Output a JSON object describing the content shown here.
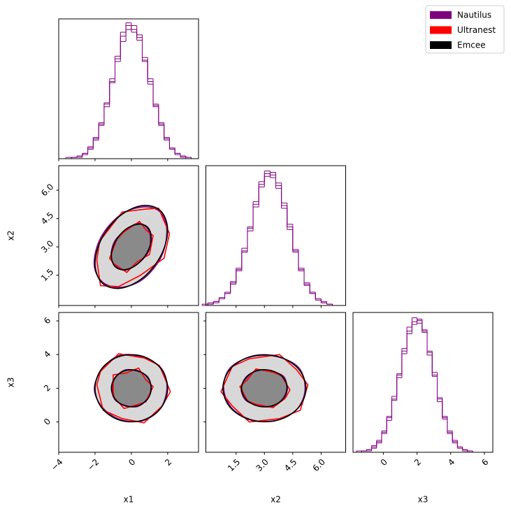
{
  "chart_data": {
    "type": "corner",
    "legend": "upper right",
    "hist_color": "purple",
    "hist_ylim": [
      0,
      105
    ],
    "variables": [
      {
        "label": "x1",
        "lim": [
          -4,
          3.7
        ],
        "ticks": [
          {
            "value": -4,
            "label": "−4"
          },
          {
            "value": -2,
            "label": "−2"
          },
          0,
          2
        ],
        "bins": [
          -3.6,
          -3.3,
          -3.0,
          -2.7,
          -2.4,
          -2.1,
          -1.8,
          -1.5,
          -1.2,
          -0.9,
          -0.6,
          -0.3,
          0,
          0.3,
          0.6,
          0.9,
          1.2,
          1.5,
          1.8,
          2.1,
          2.4,
          2.7,
          3.0,
          3.3,
          3.6
        ]
      },
      {
        "label": "x2",
        "lim": [
          -0.1,
          7.3
        ],
        "ticks": [
          1.5,
          {
            "value": 3,
            "label": "3.0"
          },
          4.5,
          {
            "value": 6,
            "label": "6.0"
          }
        ],
        "bins": [
          -0.3,
          0,
          0.3,
          0.6,
          0.9,
          1.2,
          1.5,
          1.8,
          2.1,
          2.4,
          2.7,
          3.0,
          3.3,
          3.6,
          3.9,
          4.2,
          4.5,
          4.8,
          5.1,
          5.4,
          5.7,
          6.0,
          6.3,
          6.6,
          6.9
        ]
      },
      {
        "label": "x3",
        "lim": [
          -1.8,
          6.5
        ],
        "ticks": [
          0,
          2,
          4,
          6
        ],
        "bins": [
          -1.6,
          -1.3,
          -1.0,
          -0.7,
          -0.4,
          -0.1,
          0.2,
          0.5,
          0.8,
          1.1,
          1.4,
          1.7,
          2.0,
          2.3,
          2.6,
          2.9,
          3.2,
          3.5,
          3.8,
          4.1,
          4.4,
          4.7,
          5.0,
          5.3,
          5.6
        ]
      }
    ],
    "series": [
      {
        "name": "Nautilus",
        "color": "purple",
        "counts": [
          [
            0,
            1,
            2,
            4,
            8,
            16,
            25,
            41,
            57,
            77,
            92,
            100,
            97,
            91,
            74,
            60,
            39,
            27,
            14,
            8,
            4,
            2,
            1,
            0
          ],
          [
            0,
            1,
            3,
            5,
            9,
            17,
            27,
            41,
            58,
            76,
            91,
            99,
            98,
            90,
            75,
            59,
            41,
            28,
            16,
            9,
            5,
            2,
            1,
            0
          ],
          [
            0,
            1,
            2,
            4,
            8,
            15,
            26,
            40,
            58,
            76,
            91,
            98,
            100,
            90,
            75,
            58,
            40,
            26,
            15,
            8,
            4,
            1,
            1,
            0
          ]
        ],
        "contours": [
          [
            {
              "x": [
                1.95,
                1.58,
                0.66,
                -0.6,
                -1.68,
                -2.05,
                -1.6,
                -0.58,
                0.65,
                1.66
              ],
              "y": [
                3.9,
                4.85,
                5.12,
                4.7,
                3.5,
                2.1,
                1.15,
                0.86,
                1.3,
                2.5
              ]
            },
            {
              "x": [
                1.05,
                0.86,
                0.36,
                -0.32,
                -0.92,
                -1.12,
                -0.86,
                -0.31,
                0.36,
                0.92
              ],
              "y": [
                3.45,
                4.02,
                4.25,
                3.88,
                3.3,
                2.5,
                1.98,
                1.77,
                2.12,
                2.7
              ]
            }
          ],
          [
            {
              "x": [
                1.96,
                1.64,
                0.6,
                -0.65,
                -1.6,
                -2.04,
                -1.58,
                -0.6,
                0.64,
                1.6
              ],
              "y": [
                2.05,
                3.2,
                3.85,
                3.95,
                3.15,
                1.96,
                0.85,
                0.14,
                0.08,
                0.8
              ]
            },
            {
              "x": [
                1.08,
                0.9,
                0.32,
                -0.36,
                -0.88,
                -1.06,
                -0.9,
                -0.32,
                0.35,
                0.87
              ],
              "y": [
                2.02,
                2.68,
                3.02,
                3.08,
                2.62,
                1.98,
                1.32,
                0.98,
                0.92,
                1.38
              ]
            }
          ],
          [
            {
              "x": [
                5.15,
                4.82,
                3.65,
                2.28,
                1.18,
                0.84,
                1.26,
                2.35,
                3.72,
                4.74
              ],
              "y": [
                1.95,
                3.22,
                3.88,
                3.86,
                3.2,
                2.04,
                0.84,
                0.12,
                0.12,
                0.78
              ]
            },
            {
              "x": [
                4.18,
                4.02,
                3.34,
                2.6,
                2.05,
                1.76,
                2.0,
                2.66,
                3.4,
                3.95
              ],
              "y": [
                1.98,
                2.7,
                3.0,
                3.08,
                2.6,
                2.02,
                1.3,
                0.98,
                0.92,
                1.36
              ]
            }
          ]
        ]
      },
      {
        "name": "Ultranest",
        "color": "red",
        "counts": [
          [
            1,
            1,
            2,
            3,
            9,
            14,
            27,
            39,
            60,
            73,
            88,
            102,
            95,
            93,
            76,
            56,
            41,
            25,
            16,
            7,
            3,
            2,
            0,
            0
          ],
          [
            1,
            2,
            3,
            6,
            10,
            16,
            28,
            40,
            56,
            78,
            89,
            101,
            96,
            92,
            73,
            61,
            40,
            26,
            17,
            10,
            4,
            2,
            1,
            0
          ],
          [
            1,
            1,
            2,
            3,
            9,
            16,
            24,
            42,
            56,
            78,
            89,
            101,
            97,
            92,
            73,
            60,
            38,
            27,
            14,
            9,
            3,
            2,
            0,
            0
          ]
        ],
        "contours": [
          [
            {
              "x": [
                2.1,
                1.5,
                0.75,
                -0.5,
                -1.75,
                -1.9,
                -1.7,
                -0.7,
                0.5,
                1.8
              ],
              "y": [
                3.7,
                5.05,
                5.0,
                4.85,
                3.3,
                2.3,
                0.95,
                0.9,
                1.5,
                2.4
              ]
            },
            {
              "x": [
                1.2,
                0.8,
                0.45,
                -0.4,
                -0.8,
                -1.2,
                -0.95,
                -0.25,
                0.3,
                1.0
              ],
              "y": [
                3.6,
                3.9,
                4.35,
                3.8,
                3.4,
                2.4,
                2.1,
                1.65,
                2.2,
                2.6
              ]
            }
          ],
          [
            {
              "x": [
                2.15,
                1.55,
                0.7,
                -0.7,
                -1.7,
                -1.9,
                -1.55,
                -0.5,
                0.7,
                1.7
              ],
              "y": [
                1.8,
                3.35,
                3.8,
                4.05,
                3.0,
                2.2,
                0.7,
                0.2,
                -0.05,
                0.95
              ]
            },
            {
              "x": [
                1.2,
                0.8,
                0.4,
                -0.3,
                -1.0,
                -1.0,
                -0.95,
                -0.4,
                0.4,
                0.8
              ],
              "y": [
                2.1,
                2.5,
                3.2,
                2.9,
                2.8,
                1.85,
                1.45,
                0.8,
                1.05,
                1.2
              ]
            }
          ],
          [
            {
              "x": [
                5.3,
                4.7,
                3.8,
                2.2,
                1.3,
                0.7,
                1.3,
                2.2,
                3.8,
                4.9
              ],
              "y": [
                2.2,
                3.1,
                4.0,
                3.75,
                3.3,
                1.8,
                0.95,
                0.0,
                0.2,
                0.7
              ]
            },
            {
              "x": [
                4.35,
                3.9,
                3.45,
                2.55,
                2.1,
                1.7,
                2.1,
                2.55,
                3.45,
                4.1
              ],
              "y": [
                1.9,
                2.75,
                2.95,
                3.15,
                2.5,
                2.1,
                1.25,
                1.05,
                0.85,
                1.4
              ]
            }
          ]
        ]
      },
      {
        "name": "Emcee",
        "color": "black",
        "counts": [
          [
            0,
            1,
            1,
            4,
            7,
            15,
            26,
            42,
            58,
            75,
            95,
            97,
            100,
            89,
            73,
            58,
            40,
            26,
            15,
            8,
            4,
            1,
            1,
            0
          ],
          [
            0,
            1,
            2,
            5,
            9,
            18,
            26,
            43,
            59,
            74,
            93,
            97,
            100,
            88,
            77,
            57,
            42,
            27,
            15,
            9,
            5,
            3,
            1,
            0
          ],
          [
            0,
            1,
            1,
            5,
            7,
            14,
            27,
            39,
            59,
            74,
            94,
            96,
            99,
            91,
            76,
            57,
            41,
            25,
            16,
            7,
            4,
            2,
            1,
            0
          ]
        ],
        "contours": [
          [
            {
              "x": [
                2,
                1.62,
                0.62,
                -0.62,
                -1.62,
                -2,
                -1.62,
                -0.62,
                0.62,
                1.62
              ],
              "y": [
                3.88,
                4.9,
                5.19,
                4.65,
                3.47,
                2.12,
                1.1,
                0.81,
                1.35,
                2.53
              ]
            },
            {
              "x": [
                1.1,
                0.89,
                0.34,
                -0.34,
                -0.89,
                -1.1,
                -0.89,
                -0.34,
                0.34,
                0.89
              ],
              "y": [
                3.48,
                4.05,
                4.2,
                3.91,
                3.26,
                2.52,
                1.95,
                1.8,
                2.09,
                2.74
              ]
            }
          ],
          [
            {
              "x": [
                2,
                1.62,
                0.62,
                -0.62,
                -1.62,
                -2,
                -1.62,
                -0.62,
                0.62,
                1.62
              ],
              "y": [
                2,
                3.18,
                3.9,
                3.9,
                3.18,
                2,
                0.82,
                0.1,
                0.1,
                0.82
              ]
            },
            {
              "x": [
                1.1,
                0.89,
                0.34,
                -0.34,
                -0.89,
                -1.1,
                -0.89,
                -0.34,
                0.34,
                0.89
              ],
              "y": [
                2,
                2.65,
                3.05,
                3.05,
                2.65,
                2,
                1.35,
                0.95,
                0.95,
                1.35
              ]
            }
          ],
          [
            {
              "x": [
                5.2,
                4.78,
                3.68,
                2.32,
                1.22,
                0.8,
                1.22,
                2.32,
                3.68,
                4.78
              ],
              "y": [
                2,
                3.18,
                3.9,
                3.9,
                3.18,
                2,
                0.82,
                0.1,
                0.1,
                0.82
              ]
            },
            {
              "x": [
                4.21,
                3.98,
                3.37,
                2.63,
                2.02,
                1.79,
                2.02,
                2.63,
                3.37,
                3.98
              ],
              "y": [
                2,
                2.65,
                3.05,
                3.05,
                2.65,
                2,
                1.35,
                0.95,
                0.95,
                1.35
              ]
            }
          ]
        ]
      }
    ]
  }
}
